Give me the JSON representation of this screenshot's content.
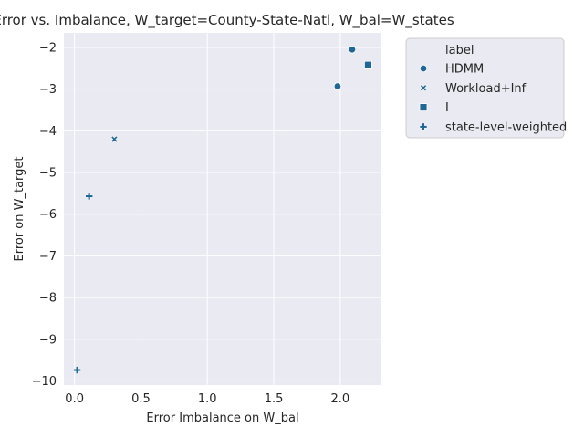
{
  "chart_data": {
    "type": "scatter",
    "title": "Error vs. Imbalance, W_target=County-State-Natl, W_bal=W_states",
    "xlabel": "Error Imbalance on W_bal",
    "ylabel": "Error on W_target",
    "xlim": [
      -0.08,
      2.31
    ],
    "ylim": [
      -10.1,
      -1.65
    ],
    "xticks": [
      0.0,
      0.5,
      1.0,
      1.5,
      2.0
    ],
    "xtick_labels": [
      "0.0",
      "0.5",
      "1.0",
      "1.5",
      "2.0"
    ],
    "yticks": [
      -2,
      -3,
      -4,
      -5,
      -6,
      -7,
      -8,
      -9,
      -10
    ],
    "ytick_labels": [
      "−2",
      "−3",
      "−4",
      "−5",
      "−6",
      "−7",
      "−8",
      "−9",
      "−10"
    ],
    "grid": true,
    "legend_title": "label",
    "legend_position": "outside-right",
    "color": "#1f6896",
    "series": [
      {
        "name": "HDMM",
        "marker": "circle",
        "x": [
          2.09,
          1.98
        ],
        "y": [
          -2.05,
          -2.93
        ]
      },
      {
        "name": "Workload+Inf",
        "marker": "x",
        "x": [
          0.3
        ],
        "y": [
          -4.2
        ]
      },
      {
        "name": "I",
        "marker": "square",
        "x": [
          2.21
        ],
        "y": [
          -2.42
        ]
      },
      {
        "name": "state-level-weighted",
        "marker": "plus",
        "x": [
          0.11,
          0.02
        ],
        "y": [
          -5.57,
          -9.74
        ]
      }
    ]
  }
}
